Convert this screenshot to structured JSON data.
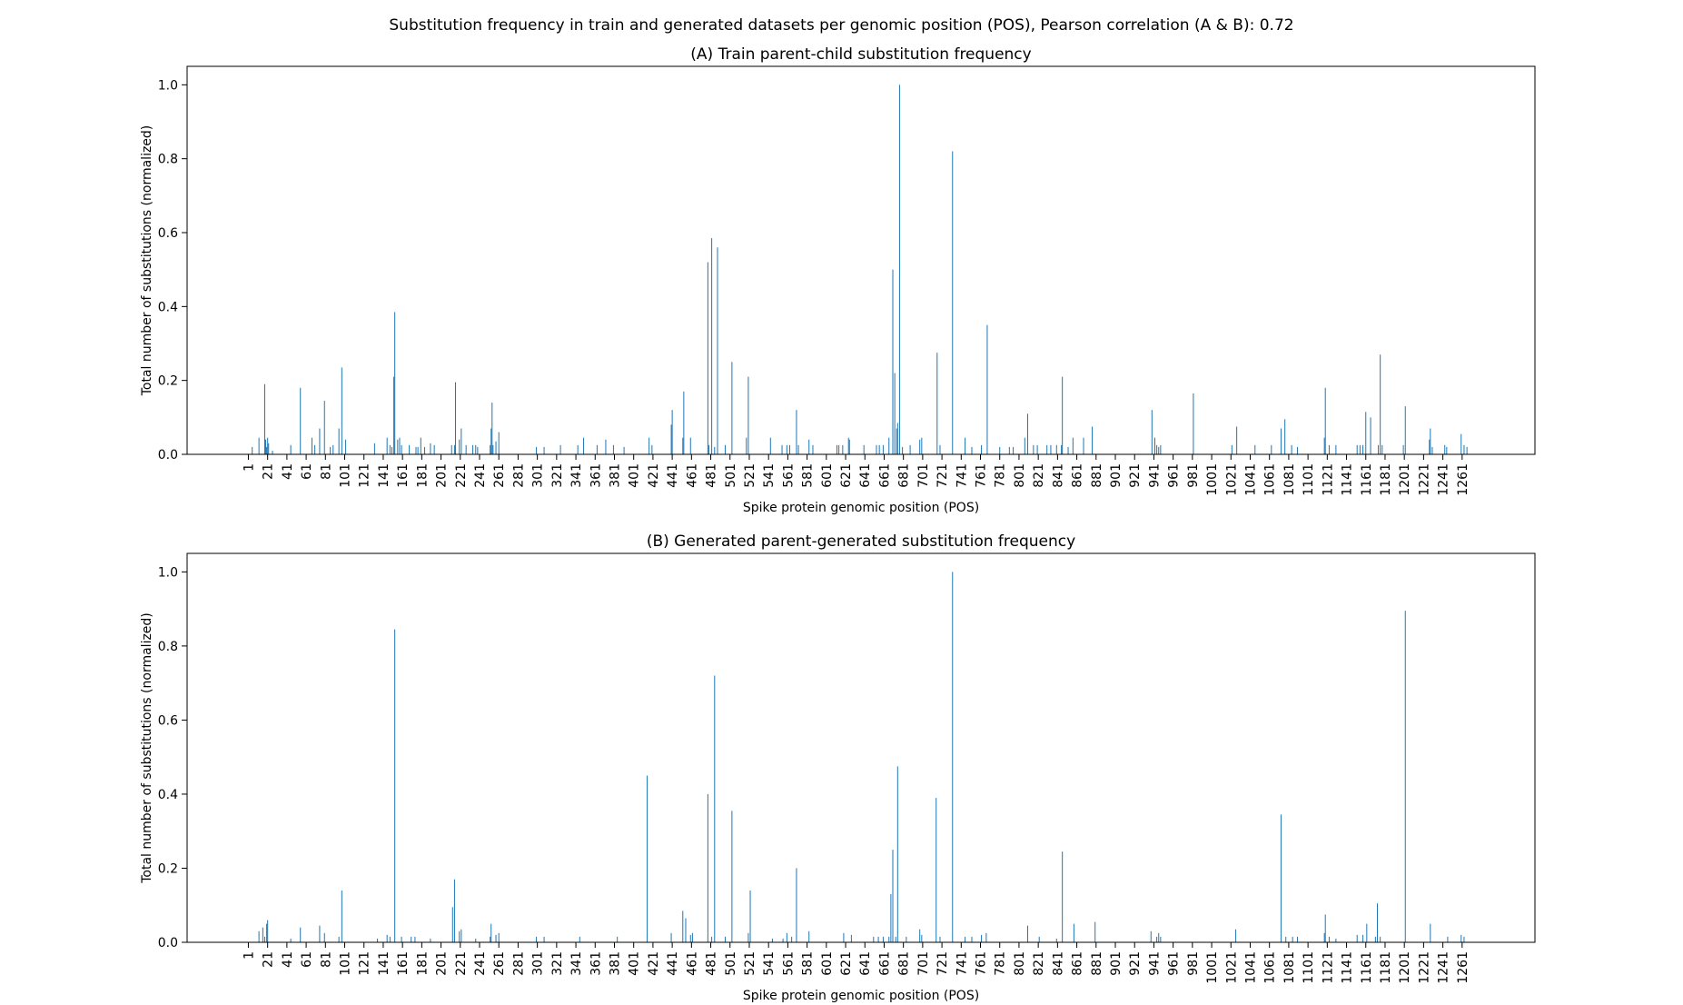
{
  "suptitle": "Substitution frequency in train and generated datasets per genomic position (POS), Pearson correlation (A & B): 0.72",
  "colors": {
    "bar": "#1f77b4"
  },
  "chart_data": [
    {
      "type": "bar",
      "title": "(A) Train parent-child substitution frequency",
      "xlabel": "Spike protein genomic position (POS)",
      "ylabel": "Total number of substitutions (normalized)",
      "xlim": [
        1,
        1273
      ],
      "ylim": [
        0,
        1.05
      ],
      "xticks": [
        1,
        21,
        41,
        61,
        81,
        101,
        121,
        141,
        161,
        181,
        201,
        221,
        241,
        261,
        281,
        301,
        321,
        341,
        361,
        381,
        401,
        421,
        441,
        461,
        481,
        501,
        521,
        541,
        561,
        581,
        601,
        621,
        641,
        661,
        681,
        701,
        721,
        741,
        761,
        781,
        801,
        821,
        841,
        861,
        881,
        901,
        921,
        941,
        961,
        981,
        1001,
        1021,
        1041,
        1061,
        1081,
        1101,
        1121,
        1141,
        1161,
        1181,
        1201,
        1221,
        1241,
        1261
      ],
      "yticks": [
        0.0,
        0.2,
        0.4,
        0.6,
        0.8,
        1.0
      ],
      "points": [
        [
          5,
          0.02
        ],
        [
          12,
          0.045
        ],
        [
          18,
          0.19
        ],
        [
          19,
          0.04
        ],
        [
          20,
          0.02
        ],
        [
          21,
          0.045
        ],
        [
          22,
          0.03
        ],
        [
          26,
          0.01
        ],
        [
          45,
          0.025
        ],
        [
          55,
          0.18
        ],
        [
          67,
          0.045
        ],
        [
          70,
          0.025
        ],
        [
          75,
          0.07
        ],
        [
          80,
          0.145
        ],
        [
          86,
          0.02
        ],
        [
          89,
          0.025
        ],
        [
          95,
          0.07
        ],
        [
          98,
          0.235
        ],
        [
          102,
          0.04
        ],
        [
          132,
          0.03
        ],
        [
          145,
          0.045
        ],
        [
          148,
          0.025
        ],
        [
          150,
          0.02
        ],
        [
          152,
          0.21
        ],
        [
          153,
          0.385
        ],
        [
          156,
          0.04
        ],
        [
          158,
          0.045
        ],
        [
          160,
          0.025
        ],
        [
          168,
          0.025
        ],
        [
          175,
          0.02
        ],
        [
          177,
          0.02
        ],
        [
          180,
          0.045
        ],
        [
          184,
          0.02
        ],
        [
          190,
          0.03
        ],
        [
          194,
          0.025
        ],
        [
          212,
          0.025
        ],
        [
          215,
          0.025
        ],
        [
          216,
          0.195
        ],
        [
          220,
          0.04
        ],
        [
          222,
          0.07
        ],
        [
          227,
          0.025
        ],
        [
          234,
          0.025
        ],
        [
          237,
          0.025
        ],
        [
          239,
          0.02
        ],
        [
          252,
          0.025
        ],
        [
          253,
          0.07
        ],
        [
          254,
          0.14
        ],
        [
          255,
          0.025
        ],
        [
          258,
          0.035
        ],
        [
          261,
          0.06
        ],
        [
          300,
          0.02
        ],
        [
          308,
          0.02
        ],
        [
          325,
          0.025
        ],
        [
          343,
          0.025
        ],
        [
          349,
          0.045
        ],
        [
          363,
          0.025
        ],
        [
          372,
          0.04
        ],
        [
          380,
          0.025
        ],
        [
          391,
          0.02
        ],
        [
          417,
          0.045
        ],
        [
          420,
          0.025
        ],
        [
          440,
          0.08
        ],
        [
          441,
          0.12
        ],
        [
          452,
          0.045
        ],
        [
          453,
          0.17
        ],
        [
          460,
          0.045
        ],
        [
          478,
          0.52
        ],
        [
          479,
          0.025
        ],
        [
          482,
          0.585
        ],
        [
          485,
          0.02
        ],
        [
          488,
          0.56
        ],
        [
          496,
          0.025
        ],
        [
          503,
          0.25
        ],
        [
          518,
          0.045
        ],
        [
          520,
          0.21
        ],
        [
          543,
          0.045
        ],
        [
          555,
          0.025
        ],
        [
          560,
          0.025
        ],
        [
          563,
          0.025
        ],
        [
          570,
          0.12
        ],
        [
          572,
          0.025
        ],
        [
          583,
          0.04
        ],
        [
          587,
          0.025
        ],
        [
          612,
          0.025
        ],
        [
          614,
          0.025
        ],
        [
          618,
          0.025
        ],
        [
          624,
          0.045
        ],
        [
          625,
          0.04
        ],
        [
          640,
          0.025
        ],
        [
          653,
          0.025
        ],
        [
          656,
          0.025
        ],
        [
          660,
          0.025
        ],
        [
          666,
          0.045
        ],
        [
          670,
          0.5
        ],
        [
          672,
          0.22
        ],
        [
          674,
          0.07
        ],
        [
          675,
          0.085
        ],
        [
          677,
          1.0
        ],
        [
          680,
          0.02
        ],
        [
          688,
          0.025
        ],
        [
          698,
          0.04
        ],
        [
          700,
          0.045
        ],
        [
          716,
          0.275
        ],
        [
          719,
          0.025
        ],
        [
          732,
          0.82
        ],
        [
          745,
          0.045
        ],
        [
          752,
          0.02
        ],
        [
          762,
          0.025
        ],
        [
          768,
          0.35
        ],
        [
          781,
          0.02
        ],
        [
          791,
          0.02
        ],
        [
          795,
          0.02
        ],
        [
          807,
          0.045
        ],
        [
          810,
          0.11
        ],
        [
          816,
          0.025
        ],
        [
          820,
          0.025
        ],
        [
          830,
          0.025
        ],
        [
          834,
          0.025
        ],
        [
          840,
          0.025
        ],
        [
          845,
          0.025
        ],
        [
          846,
          0.21
        ],
        [
          852,
          0.02
        ],
        [
          857,
          0.045
        ],
        [
          868,
          0.045
        ],
        [
          877,
          0.075
        ],
        [
          939,
          0.12
        ],
        [
          942,
          0.045
        ],
        [
          944,
          0.025
        ],
        [
          946,
          0.02
        ],
        [
          948,
          0.025
        ],
        [
          982,
          0.165
        ],
        [
          1022,
          0.025
        ],
        [
          1027,
          0.075
        ],
        [
          1046,
          0.025
        ],
        [
          1063,
          0.025
        ],
        [
          1073,
          0.07
        ],
        [
          1077,
          0.095
        ],
        [
          1084,
          0.025
        ],
        [
          1090,
          0.02
        ],
        [
          1118,
          0.045
        ],
        [
          1119,
          0.18
        ],
        [
          1123,
          0.025
        ],
        [
          1130,
          0.025
        ],
        [
          1152,
          0.025
        ],
        [
          1155,
          0.025
        ],
        [
          1158,
          0.025
        ],
        [
          1161,
          0.115
        ],
        [
          1166,
          0.1
        ],
        [
          1174,
          0.025
        ],
        [
          1176,
          0.27
        ],
        [
          1178,
          0.025
        ],
        [
          1200,
          0.025
        ],
        [
          1202,
          0.13
        ],
        [
          1227,
          0.04
        ],
        [
          1228,
          0.07
        ],
        [
          1230,
          0.02
        ],
        [
          1243,
          0.025
        ],
        [
          1245,
          0.02
        ],
        [
          1260,
          0.055
        ],
        [
          1263,
          0.025
        ],
        [
          1266,
          0.02
        ]
      ]
    },
    {
      "type": "bar",
      "title": "(B) Generated parent-generated substitution frequency",
      "xlabel": "Spike protein genomic position (POS)",
      "ylabel": "Total number of substitutions (normalized)",
      "xlim": [
        1,
        1273
      ],
      "ylim": [
        0,
        1.05
      ],
      "xticks": [
        1,
        21,
        41,
        61,
        81,
        101,
        121,
        141,
        161,
        181,
        201,
        221,
        241,
        261,
        281,
        301,
        321,
        341,
        361,
        381,
        401,
        421,
        441,
        461,
        481,
        501,
        521,
        541,
        561,
        581,
        601,
        621,
        641,
        661,
        681,
        701,
        721,
        741,
        761,
        781,
        801,
        821,
        841,
        861,
        881,
        901,
        921,
        941,
        961,
        981,
        1001,
        1021,
        1041,
        1061,
        1081,
        1101,
        1121,
        1141,
        1161,
        1181,
        1201,
        1221,
        1241,
        1261
      ],
      "yticks": [
        0.0,
        0.2,
        0.4,
        0.6,
        0.8,
        1.0
      ],
      "points": [
        [
          12,
          0.03
        ],
        [
          16,
          0.04
        ],
        [
          18,
          0.015
        ],
        [
          20,
          0.05
        ],
        [
          21,
          0.06
        ],
        [
          45,
          0.01
        ],
        [
          55,
          0.04
        ],
        [
          75,
          0.045
        ],
        [
          80,
          0.025
        ],
        [
          95,
          0.015
        ],
        [
          98,
          0.14
        ],
        [
          135,
          0.01
        ],
        [
          145,
          0.02
        ],
        [
          148,
          0.015
        ],
        [
          153,
          0.845
        ],
        [
          160,
          0.015
        ],
        [
          170,
          0.015
        ],
        [
          174,
          0.015
        ],
        [
          190,
          0.01
        ],
        [
          213,
          0.095
        ],
        [
          215,
          0.17
        ],
        [
          220,
          0.03
        ],
        [
          222,
          0.035
        ],
        [
          237,
          0.01
        ],
        [
          252,
          0.015
        ],
        [
          253,
          0.05
        ],
        [
          258,
          0.02
        ],
        [
          261,
          0.025
        ],
        [
          300,
          0.015
        ],
        [
          308,
          0.015
        ],
        [
          345,
          0.015
        ],
        [
          384,
          0.015
        ],
        [
          415,
          0.45
        ],
        [
          440,
          0.025
        ],
        [
          452,
          0.085
        ],
        [
          455,
          0.065
        ],
        [
          460,
          0.02
        ],
        [
          462,
          0.025
        ],
        [
          478,
          0.4
        ],
        [
          482,
          0.015
        ],
        [
          485,
          0.72
        ],
        [
          496,
          0.015
        ],
        [
          503,
          0.355
        ],
        [
          520,
          0.025
        ],
        [
          522,
          0.14
        ],
        [
          545,
          0.01
        ],
        [
          556,
          0.01
        ],
        [
          560,
          0.025
        ],
        [
          565,
          0.015
        ],
        [
          570,
          0.2
        ],
        [
          583,
          0.03
        ],
        [
          619,
          0.025
        ],
        [
          627,
          0.02
        ],
        [
          650,
          0.015
        ],
        [
          655,
          0.015
        ],
        [
          660,
          0.015
        ],
        [
          666,
          0.015
        ],
        [
          668,
          0.13
        ],
        [
          670,
          0.25
        ],
        [
          673,
          0.015
        ],
        [
          675,
          0.475
        ],
        [
          684,
          0.015
        ],
        [
          698,
          0.035
        ],
        [
          700,
          0.02
        ],
        [
          715,
          0.39
        ],
        [
          719,
          0.015
        ],
        [
          732,
          1.0
        ],
        [
          745,
          0.015
        ],
        [
          752,
          0.015
        ],
        [
          762,
          0.02
        ],
        [
          767,
          0.025
        ],
        [
          810,
          0.045
        ],
        [
          822,
          0.015
        ],
        [
          840,
          0.01
        ],
        [
          846,
          0.245
        ],
        [
          858,
          0.05
        ],
        [
          880,
          0.055
        ],
        [
          938,
          0.03
        ],
        [
          944,
          0.015
        ],
        [
          946,
          0.025
        ],
        [
          948,
          0.015
        ],
        [
          1026,
          0.035
        ],
        [
          1073,
          0.345
        ],
        [
          1078,
          0.015
        ],
        [
          1085,
          0.015
        ],
        [
          1090,
          0.015
        ],
        [
          1118,
          0.025
        ],
        [
          1119,
          0.075
        ],
        [
          1123,
          0.015
        ],
        [
          1130,
          0.01
        ],
        [
          1152,
          0.02
        ],
        [
          1158,
          0.02
        ],
        [
          1162,
          0.05
        ],
        [
          1171,
          0.015
        ],
        [
          1173,
          0.105
        ],
        [
          1176,
          0.015
        ],
        [
          1202,
          0.895
        ],
        [
          1228,
          0.05
        ],
        [
          1246,
          0.015
        ],
        [
          1260,
          0.02
        ],
        [
          1263,
          0.015
        ]
      ]
    }
  ]
}
